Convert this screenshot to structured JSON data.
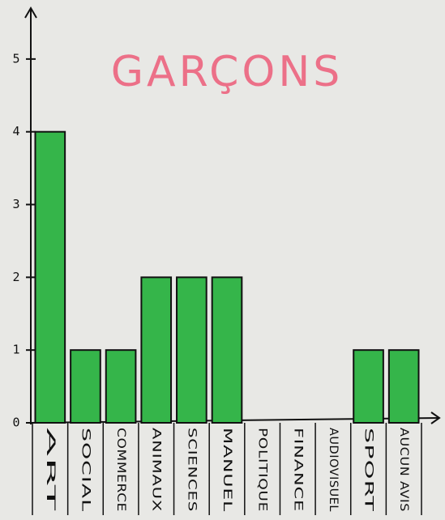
{
  "chart_data": {
    "type": "bar",
    "title": "GARÇONS",
    "categories": [
      "ART",
      "SOCIAL",
      "COMMERCE",
      "ANIMAUX",
      "SCIENCES",
      "MANUEL",
      "POLITIQUE",
      "FINANCE",
      "AUDIOVISUEL",
      "SPORT",
      "AUCUN AVIS"
    ],
    "values": [
      4,
      1,
      1,
      2,
      2,
      2,
      0,
      0,
      0,
      1,
      1
    ],
    "color": "#35b54a",
    "ylim": [
      0,
      5.7
    ],
    "yticks": [
      0,
      1,
      2,
      3,
      4,
      5
    ]
  }
}
